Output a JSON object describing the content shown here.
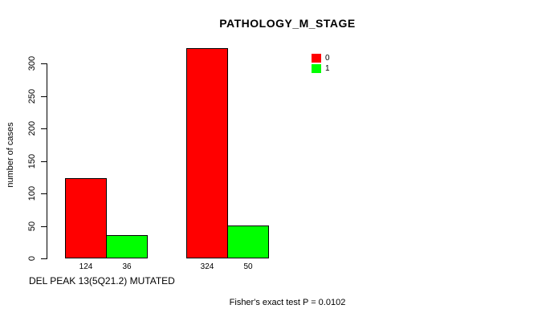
{
  "page": {
    "background": "#ffffff",
    "text_color": "#000000"
  },
  "chart_data": {
    "type": "bar",
    "title": "PATHOLOGY_M_STAGE",
    "xlabel": "DEL PEAK 13(5Q21.2) MUTATED",
    "ylabel": "number of cases",
    "ylim": [
      0,
      330
    ],
    "yticks": [
      0,
      50,
      100,
      150,
      200,
      250,
      300
    ],
    "grid": false,
    "series": [
      {
        "name": "0",
        "color": "#ff0000",
        "values": [
          124,
          324
        ]
      },
      {
        "name": "1",
        "color": "#00ff00",
        "values": [
          36,
          50
        ]
      }
    ],
    "bar_value_labels": [
      [
        "124",
        "324"
      ],
      [
        "36",
        "50"
      ]
    ],
    "legend": {
      "position": "top-right",
      "entries": [
        {
          "label": "0",
          "color": "#ff0000"
        },
        {
          "label": "1",
          "color": "#00ff00"
        }
      ]
    },
    "footnote": "Fisher's exact test P = 0.0102"
  }
}
